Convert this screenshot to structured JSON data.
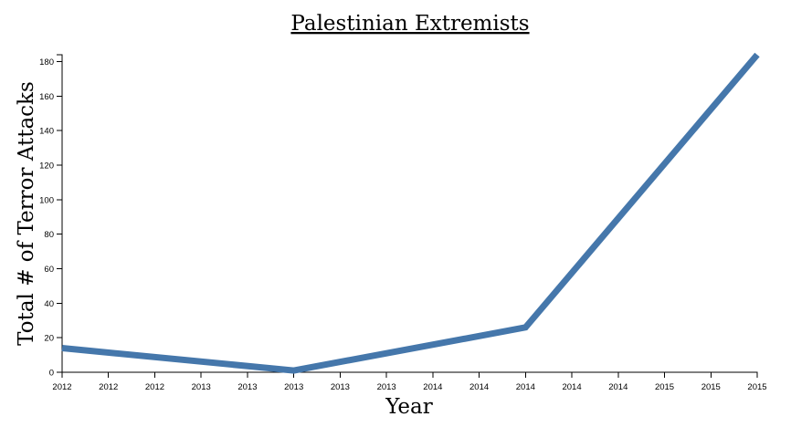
{
  "chart_data": {
    "type": "line",
    "title": "Palestinian Extremists",
    "xlabel": "Year",
    "ylabel": "Total # of Terror Attacks",
    "x_tick_labels": [
      "2012",
      "2012",
      "2012",
      "2013",
      "2013",
      "2013",
      "2013",
      "2013",
      "2014",
      "2014",
      "2014",
      "2014",
      "2014",
      "2015",
      "2015",
      "2015"
    ],
    "yticks": [
      0,
      20,
      40,
      60,
      80,
      100,
      120,
      140,
      160,
      180
    ],
    "ylim": [
      0,
      184
    ],
    "series": [
      {
        "color": "#4577ab",
        "points": [
          {
            "x": "2012",
            "y": 14
          },
          {
            "x": "2013",
            "y": 1
          },
          {
            "x": "2014",
            "y": 26
          },
          {
            "x": "2015",
            "y": 184
          }
        ]
      }
    ]
  }
}
